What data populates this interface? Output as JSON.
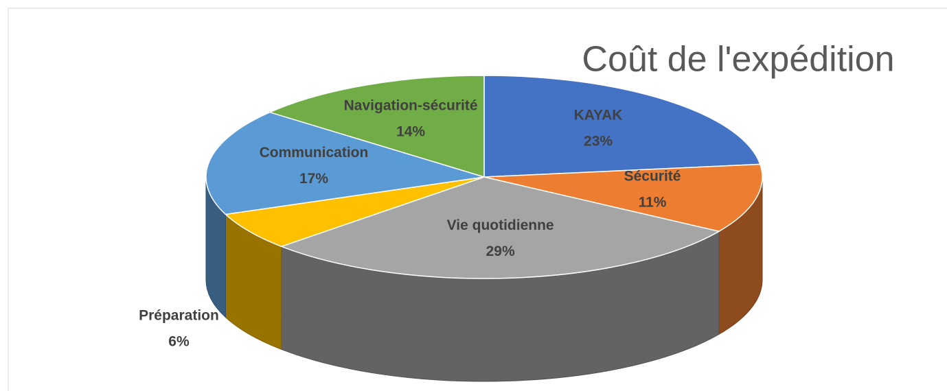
{
  "chart_data": {
    "type": "pie3d",
    "title": "Coût de l'expédition",
    "categories": [
      "KAYAK",
      "Sécurité",
      "Vie quotidienne",
      "Préparation",
      "Communication",
      "Navigation-sécurité"
    ],
    "values": [
      23,
      11,
      29,
      6,
      17,
      14
    ],
    "value_labels": [
      "23%",
      "11%",
      "29%",
      "6%",
      "17%",
      "14%"
    ],
    "colors": [
      "#4472c4",
      "#ed7d31",
      "#a5a5a5",
      "#ffc000",
      "#5b9bd5",
      "#70ad47"
    ]
  }
}
